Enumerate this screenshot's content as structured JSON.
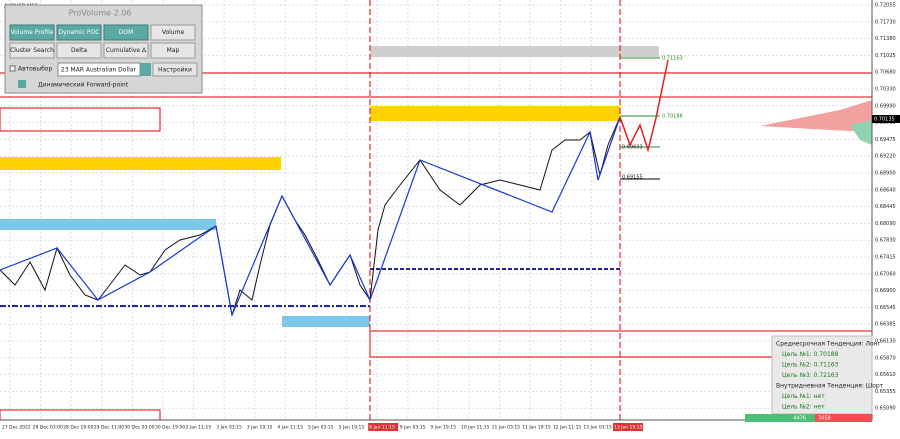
{
  "symbol": "AUDUSD,M15",
  "panel": {
    "title": "ProVolume 2.06",
    "buttons": [
      "Volume Profile",
      "Dynamic POC",
      "DOM",
      "Volume",
      "Cluster Search",
      "Delta",
      "Cumulative Δ",
      "Map"
    ],
    "checkbox": "Автовыбор",
    "instrument": "23 MAR Australian Dollar",
    "settings": "Настройки",
    "forward": "Динамический Forward-point"
  },
  "price_axis": [
    "0.72055",
    "0.71730",
    "0.71380",
    "0.71025",
    "0.70680",
    "0.70330",
    "0.69990",
    "0.69735",
    "0.69475",
    "0.69220",
    "0.68900",
    "0.68640",
    "0.68445",
    "0.68090",
    "0.67830",
    "0.67415",
    "0.67060",
    "0.66900",
    "0.66545",
    "0.66385",
    "0.66130",
    "0.65870",
    "0.65610",
    "0.65355",
    "0.65090"
  ],
  "current_price": "0.70135",
  "level_labels": [
    "0.71163",
    "0.70188",
    "0.69603",
    "0.69155"
  ],
  "time_axis": [
    "27 Dec 2022",
    "28 Dec 03:00",
    "28 Dec 19:00",
    "29 Dec 11:00",
    "30 Dec 03:00",
    "30 Dec 19:00",
    "2 Jan 11:15",
    "3 Jan 03:15",
    "3 Jan 19:15",
    "4 Jan 11:15",
    "5 Jan 03:15",
    "5 Jan 19:15",
    "6 Jan 11:15",
    "9 Jan 03:15",
    "9 Jan 19:15",
    "10 Jan 11:15",
    "11 Jan 03:15",
    "11 Jan 19:15",
    "12 Jan 11:15",
    "13 Jan 03:15",
    "13 Jan 19:15"
  ],
  "info": {
    "lines": [
      "Среднесрочная Тенденция: Лонг",
      "Цель №1:  0.70188",
      "Цель №2:  0.71163",
      "Цель №3:  0.72163",
      "Внутридневная Тенденция: Шорт",
      "Цель №1:  нет",
      "Цель №2:  нет"
    ],
    "buy": "4476",
    "sell": "3458"
  }
}
